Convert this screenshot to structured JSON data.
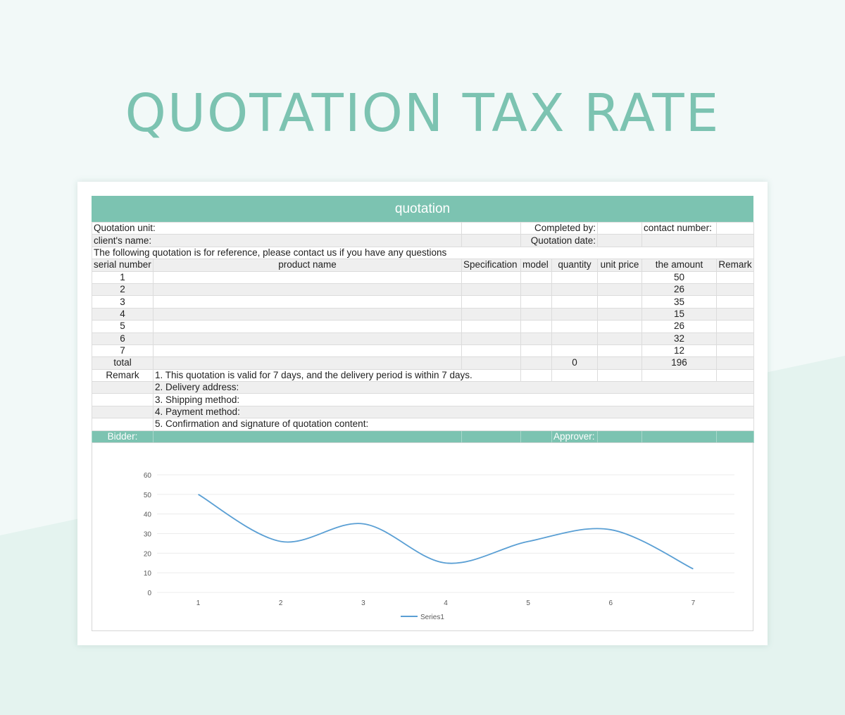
{
  "page": {
    "title": "QUOTATION TAX RATE"
  },
  "sheet": {
    "banner": "quotation",
    "info_row1": {
      "quotation_unit": "Quotation unit:",
      "completed_by": "Completed by:",
      "contact_number": "contact number:"
    },
    "info_row2": {
      "clients_name": "client's name:",
      "quotation_date": "Quotation date:"
    },
    "note": "The following quotation is for reference, please contact us if you have any questions",
    "headers": [
      "serial number",
      "product name",
      "Specification",
      "model",
      "quantity",
      "unit price",
      "the amount",
      "Remark"
    ],
    "rows": [
      {
        "serial": "1",
        "amount": "50"
      },
      {
        "serial": "2",
        "amount": "26"
      },
      {
        "serial": "3",
        "amount": "35"
      },
      {
        "serial": "4",
        "amount": "15"
      },
      {
        "serial": "5",
        "amount": "26"
      },
      {
        "serial": "6",
        "amount": "32"
      },
      {
        "serial": "7",
        "amount": "12"
      }
    ],
    "total": {
      "label": "total",
      "quantity": "0",
      "amount": "196"
    },
    "remark_label": "Remark",
    "remarks": [
      "1. This quotation is valid for 7 days, and the delivery period is within 7 days.",
      "2. Delivery address:",
      "3. Shipping method:",
      "4. Payment method:",
      "5. Confirmation and signature of quotation content:"
    ],
    "footer": {
      "bidder": "Bidder:",
      "approver": "Approver:"
    }
  },
  "colors": {
    "accent": "#7cc3b1",
    "line": "#5a9fd4",
    "page_bg": "#f2f9f8"
  },
  "chart_data": {
    "type": "line",
    "categories": [
      "1",
      "2",
      "3",
      "4",
      "5",
      "6",
      "7"
    ],
    "series": [
      {
        "name": "Series1",
        "values": [
          50,
          26,
          35,
          15,
          26,
          32,
          12
        ]
      }
    ],
    "yticks": [
      "0",
      "10",
      "20",
      "30",
      "40",
      "50",
      "60"
    ],
    "ylim": [
      0,
      60
    ],
    "grid": true,
    "smooth": true,
    "legend": "bottom"
  }
}
